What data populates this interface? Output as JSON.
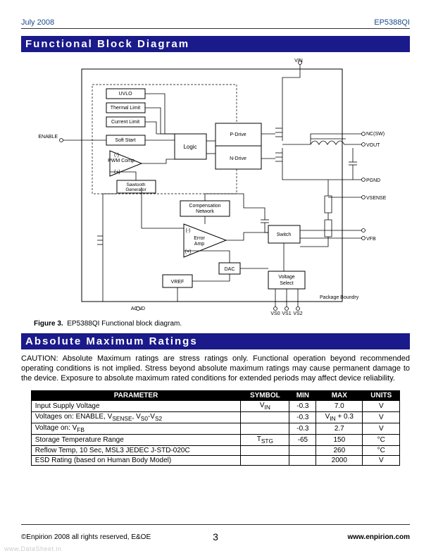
{
  "header": {
    "date": "July 2008",
    "part": "EP5388QI"
  },
  "sections": {
    "diagram_title": "Functional Block Diagram",
    "ratings_title": "Absolute Maximum Ratings"
  },
  "figure": {
    "label": "Figure 3.",
    "caption": "EP5388QI Functional block diagram.",
    "border_color": "#000000",
    "line_color": "#000000",
    "fill": "#ffffff",
    "box_fill": "#ffffff",
    "text_color": "#000000",
    "font_size": 7,
    "blocks": {
      "uvlo": "UVLO",
      "thermal": "Thermal Limit",
      "current": "Current Limit",
      "softstart": "Soft Start",
      "pwm": "PWM\nComp",
      "sawtooth": "Sawtooth\nGenerator",
      "logic": "Logic",
      "pdrive": "P-Drive",
      "ndrive": "N-Drive",
      "compnet": "Compensation\nNetwork",
      "erramp": "Error\nAmp",
      "dac": "DAC",
      "vref": "VREF",
      "switch": "Switch",
      "vselect": "Voltage\nSelect",
      "pkgbound": "Package Boundry"
    },
    "pins": {
      "vin": "VIN",
      "enable": "ENABLE",
      "ncsw": "NC(SW)",
      "vout": "VOUT",
      "pgnd": "PGND",
      "vsense": "VSENSE",
      "vfb": "VFB",
      "agnd": "AGND",
      "vs0": "VS0",
      "vs1": "VS1",
      "vs2": "VS2"
    }
  },
  "ratings_text": "CAUTION: Absolute Maximum ratings are stress ratings only. Functional operation beyond recommended operating conditions is not implied. Stress beyond absolute maximum ratings may cause permanent damage to the device. Exposure to absolute maximum rated conditions for extended periods may affect device reliability.",
  "ratings_table": {
    "headers": [
      "PARAMETER",
      "SYMBOL",
      "MIN",
      "MAX",
      "UNITS"
    ],
    "col_align": [
      "left",
      "center",
      "center",
      "center",
      "center"
    ],
    "rows": [
      [
        "Input Supply Voltage",
        "V<sub>IN</sub>",
        "-0.3",
        "7.0",
        "V"
      ],
      [
        "Voltages on: ENABLE, V<sub>SENSE</sub>, V<sub>S0</sub>-V<sub>S2</sub>",
        "",
        "-0.3",
        "V<sub>IN</sub> + 0.3",
        "V"
      ],
      [
        "Voltage on: V<sub>FB</sub>",
        "",
        "-0.3",
        "2.7",
        "V"
      ],
      [
        "Storage Temperature Range",
        "T<sub>STG</sub>",
        "-65",
        "150",
        "°C"
      ],
      [
        "Reflow Temp, 10 Sec, MSL3 JEDEC J-STD-020C",
        "",
        "",
        "260",
        "°C"
      ],
      [
        "ESD Rating (based on Human Body Model)",
        "",
        "",
        "2000",
        "V"
      ]
    ]
  },
  "footer": {
    "left": "©Enpirion 2008 all rights reserved, E&OE",
    "page": "3",
    "right": "www.enpirion.com"
  },
  "watermark": "www.DataSheet.in"
}
